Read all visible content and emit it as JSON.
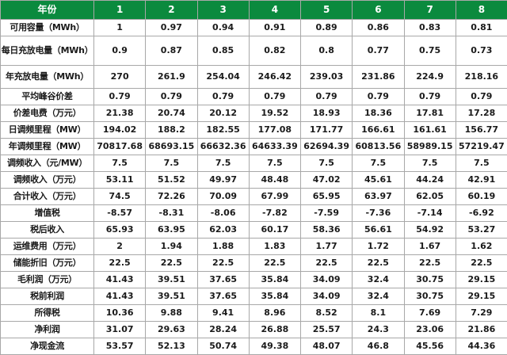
{
  "header": [
    "年份",
    "1",
    "2",
    "3",
    "4",
    "5",
    "6",
    "7",
    "8"
  ],
  "rows": [
    {
      "label": "可用容量（MWh）",
      "values": [
        "1",
        "0.97",
        "0.94",
        "0.91",
        "0.89",
        "0.86",
        "0.83",
        "0.81"
      ]
    },
    {
      "label": "每日充放电量（MWh）",
      "values": [
        "0.9",
        "0.87",
        "0.85",
        "0.82",
        "0.8",
        "0.77",
        "0.75",
        "0.73"
      ]
    },
    {
      "label": "年充放电量（MWh）",
      "values": [
        "270",
        "261.9",
        "254.04",
        "246.42",
        "239.03",
        "231.86",
        "224.9",
        "218.16"
      ]
    },
    {
      "label": "平均峰谷价差",
      "values": [
        "0.79",
        "0.79",
        "0.79",
        "0.79",
        "0.79",
        "0.79",
        "0.79",
        "0.79"
      ]
    },
    {
      "label": "价差电费（万元）",
      "values": [
        "21.38",
        "20.74",
        "20.12",
        "19.52",
        "18.93",
        "18.36",
        "17.81",
        "17.28"
      ]
    },
    {
      "label": "日调频里程（MW）",
      "values": [
        "194.02",
        "188.2",
        "182.55",
        "177.08",
        "171.77",
        "166.61",
        "161.61",
        "156.77"
      ]
    },
    {
      "label": "年调频里程（MW）",
      "values": [
        "70817.68",
        "68693.15",
        "66632.36",
        "64633.39",
        "62694.39",
        "60813.56",
        "58989.15",
        "57219.47"
      ]
    },
    {
      "label": "调频收入（元/MW）",
      "values": [
        "7.5",
        "7.5",
        "7.5",
        "7.5",
        "7.5",
        "7.5",
        "7.5",
        "7.5"
      ]
    },
    {
      "label": "调频收入（万元）",
      "values": [
        "53.11",
        "51.52",
        "49.97",
        "48.48",
        "47.02",
        "45.61",
        "44.24",
        "42.91"
      ]
    },
    {
      "label": "合计收入（万元）",
      "values": [
        "74.5",
        "72.26",
        "70.09",
        "67.99",
        "65.95",
        "63.97",
        "62.05",
        "60.19"
      ]
    },
    {
      "label": "增值税",
      "values": [
        "-8.57",
        "-8.31",
        "-8.06",
        "-7.82",
        "-7.59",
        "-7.36",
        "-7.14",
        "-6.92"
      ]
    },
    {
      "label": "税后收入",
      "values": [
        "65.93",
        "63.95",
        "62.03",
        "60.17",
        "58.36",
        "56.61",
        "54.92",
        "53.27"
      ]
    },
    {
      "label": "运维费用（万元）",
      "values": [
        "2",
        "1.94",
        "1.88",
        "1.83",
        "1.77",
        "1.72",
        "1.67",
        "1.62"
      ]
    },
    {
      "label": "储能折旧（万元）",
      "values": [
        "22.5",
        "22.5",
        "22.5",
        "22.5",
        "22.5",
        "22.5",
        "22.5",
        "22.5"
      ]
    },
    {
      "label": "毛利润（万元）",
      "values": [
        "41.43",
        "39.51",
        "37.65",
        "35.84",
        "34.09",
        "32.4",
        "30.75",
        "29.15"
      ]
    },
    {
      "label": "税前利润",
      "values": [
        "41.43",
        "39.51",
        "37.65",
        "35.84",
        "34.09",
        "32.4",
        "30.75",
        "29.15"
      ]
    },
    {
      "label": "所得税",
      "values": [
        "10.36",
        "9.88",
        "9.41",
        "8.96",
        "8.52",
        "8.1",
        "7.69",
        "7.29"
      ]
    },
    {
      "label": "净利润",
      "values": [
        "31.07",
        "29.63",
        "28.24",
        "26.88",
        "25.57",
        "24.3",
        "23.06",
        "21.86"
      ]
    },
    {
      "label": "净现金流",
      "values": [
        "53.57",
        "52.13",
        "50.74",
        "49.38",
        "48.07",
        "46.8",
        "45.56",
        "44.36"
      ]
    }
  ]
}
